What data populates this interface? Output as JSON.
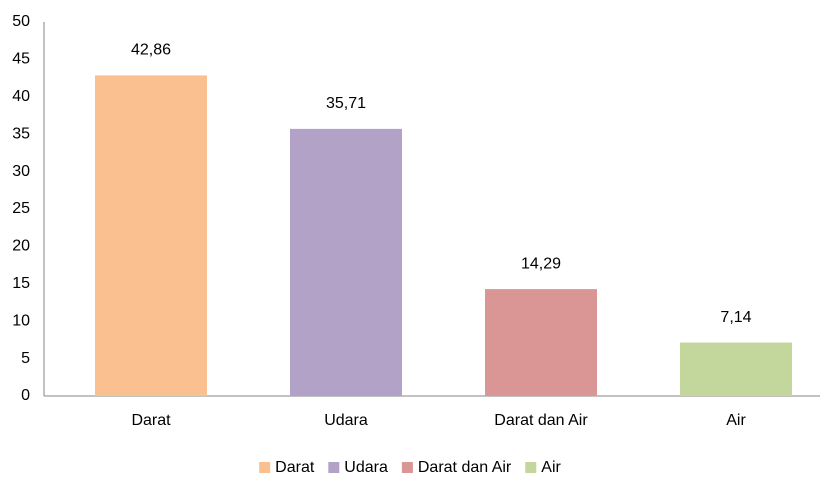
{
  "chart_data": {
    "type": "bar",
    "categories": [
      "Darat",
      "Udara",
      "Darat dan Air",
      "Air"
    ],
    "values": [
      42.86,
      35.71,
      14.29,
      7.14
    ],
    "value_labels": [
      "42,86",
      "35,71",
      "14,29",
      "7,14"
    ],
    "colors": [
      "#fac090",
      "#b3a2c7",
      "#d99694",
      "#c3d69b"
    ],
    "ylim": [
      0,
      50
    ],
    "yticks": [
      0,
      5,
      10,
      15,
      20,
      25,
      30,
      35,
      40,
      45,
      50
    ],
    "grid": false,
    "legend": "bottom"
  }
}
